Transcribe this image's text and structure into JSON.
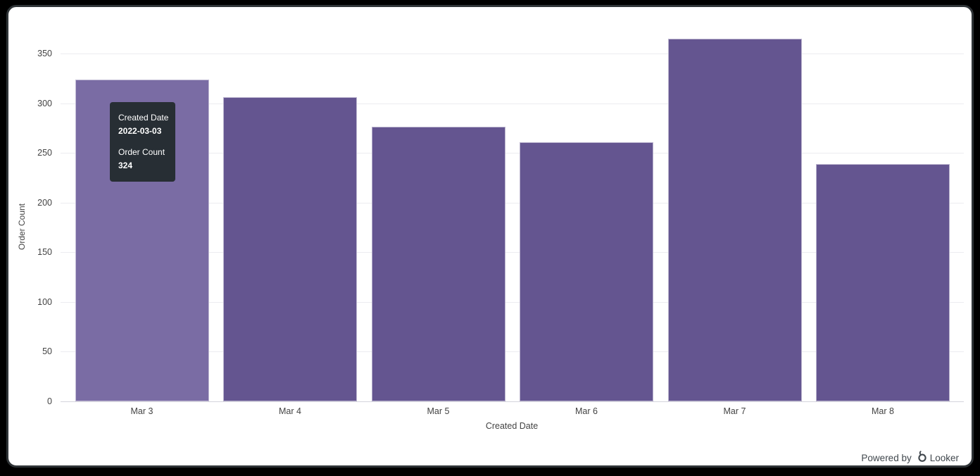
{
  "tooltip": {
    "dimension_label": "Created Date",
    "dimension_value": "2022-03-03",
    "measure_label": "Order Count",
    "measure_value": "324"
  },
  "footer": {
    "powered_by": "Powered by",
    "brand": "Looker"
  },
  "chart_data": {
    "type": "bar",
    "title": "",
    "categories": [
      "Mar 3",
      "Mar 4",
      "Mar 5",
      "Mar 6",
      "Mar 7",
      "Mar 8"
    ],
    "series": [
      {
        "name": "Order Count",
        "values": [
          324,
          306,
          276,
          261,
          365,
          239
        ]
      }
    ],
    "xlabel": "Created Date",
    "ylabel": "Order Count",
    "ylim": [
      0,
      380
    ],
    "yticks": [
      0,
      50,
      100,
      150,
      200,
      250,
      300,
      350
    ],
    "grid": true,
    "legend_position": "none",
    "hovered_index": 0,
    "colors": {
      "bar": "#645590",
      "bar_hover": "#7a6ca4",
      "tooltip_bg": "#272e34",
      "grid": "#ececf0",
      "text": "#434343"
    }
  }
}
